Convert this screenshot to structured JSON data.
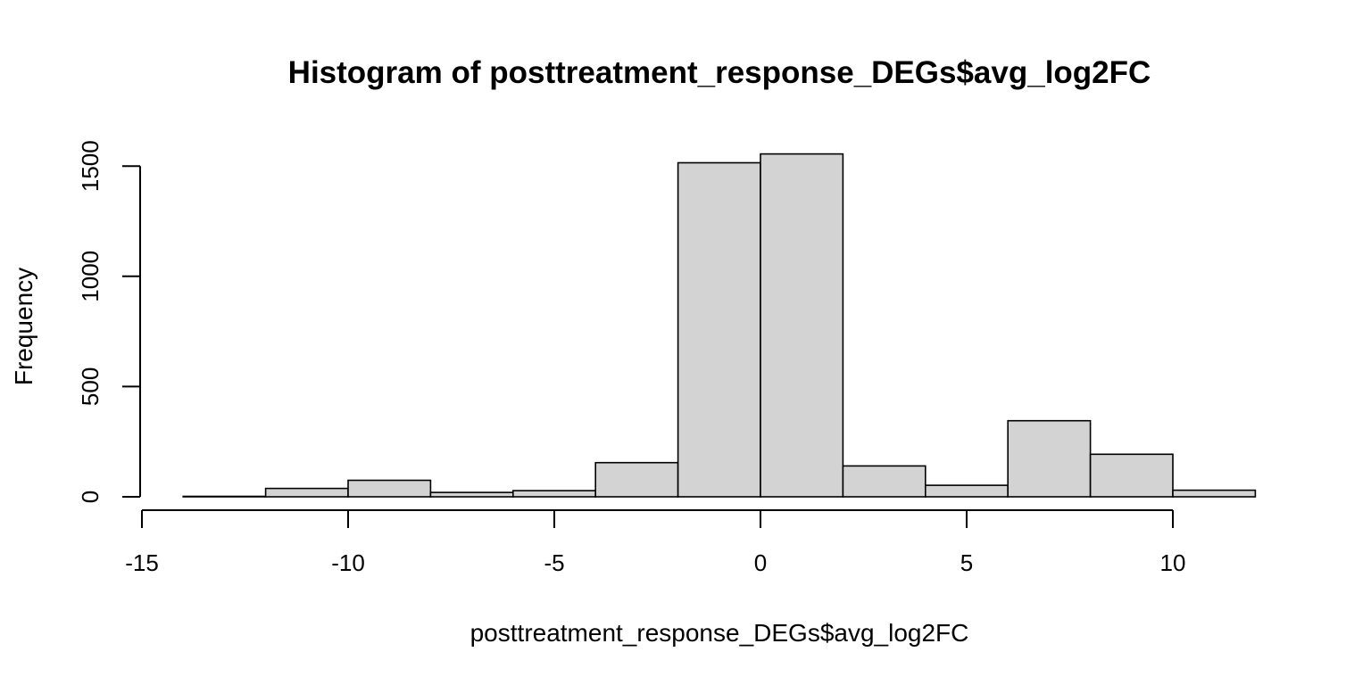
{
  "chart_data": {
    "type": "bar",
    "title": "Histogram of posttreatment_response_DEGs$avg_log2FC",
    "xlabel": "posttreatment_response_DEGs$avg_log2FC",
    "ylabel": "Frequency",
    "xlim": [
      -15,
      12
    ],
    "ylim": [
      0,
      1550
    ],
    "x_ticks": [
      -15,
      -10,
      -5,
      0,
      5,
      10
    ],
    "y_ticks": [
      0,
      500,
      1000,
      1500
    ],
    "bins": [
      {
        "start": -14,
        "end": -12,
        "count": 2
      },
      {
        "start": -12,
        "end": -10,
        "count": 38
      },
      {
        "start": -10,
        "end": -8,
        "count": 75
      },
      {
        "start": -8,
        "end": -6,
        "count": 20
      },
      {
        "start": -6,
        "end": -4,
        "count": 28
      },
      {
        "start": -4,
        "end": -2,
        "count": 155
      },
      {
        "start": -2,
        "end": 0,
        "count": 1515
      },
      {
        "start": 0,
        "end": 2,
        "count": 1555
      },
      {
        "start": 2,
        "end": 4,
        "count": 140
      },
      {
        "start": 4,
        "end": 6,
        "count": 52
      },
      {
        "start": 6,
        "end": 8,
        "count": 345
      },
      {
        "start": 8,
        "end": 10,
        "count": 193
      },
      {
        "start": 10,
        "end": 12,
        "count": 30
      }
    ]
  }
}
